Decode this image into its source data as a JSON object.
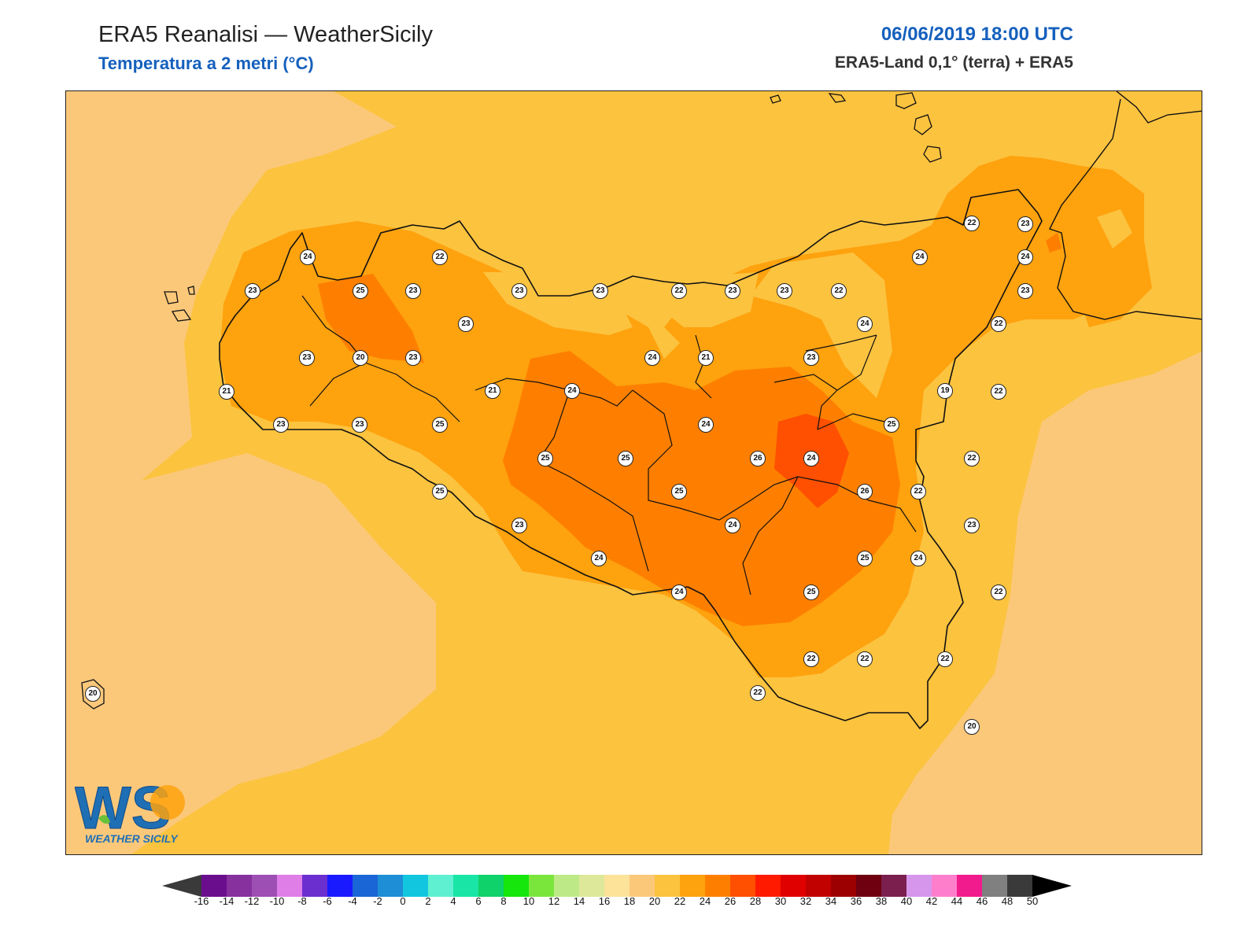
{
  "header": {
    "title": "ERA5 Reanalisi — WeatherSicily",
    "subtitle": "Temperatura a 2 metri (°C)",
    "datetime": "06/06/2019 18:00 UTC",
    "source": "ERA5-Land 0,1° (terra) + ERA5"
  },
  "map": {
    "region": "Sicily",
    "variable": "2m temperature",
    "unit": "°C",
    "station_values": [
      24,
      22,
      23,
      25,
      23,
      23,
      23,
      22,
      23,
      23,
      22,
      22,
      23,
      24,
      24,
      23,
      24,
      22,
      23,
      20,
      23,
      23,
      24,
      21,
      23,
      21,
      19,
      21,
      22,
      23,
      23,
      25,
      25,
      24,
      24,
      25,
      25,
      26,
      24,
      22,
      25,
      26,
      25,
      22,
      23,
      24,
      23,
      24,
      25,
      24,
      22,
      24,
      25,
      22,
      22,
      22,
      22,
      20,
      20
    ]
  },
  "colorbar": {
    "ticks": [
      "-16",
      "-14",
      "-12",
      "-10",
      "-8",
      "-6",
      "-4",
      "-2",
      "0",
      "2",
      "4",
      "6",
      "8",
      "10",
      "12",
      "14",
      "16",
      "18",
      "20",
      "22",
      "24",
      "26",
      "28",
      "30",
      "32",
      "34",
      "36",
      "38",
      "40",
      "42",
      "44",
      "46",
      "48",
      "50"
    ],
    "colors": [
      "#4a0050",
      "#6a0e8e",
      "#86319e",
      "#9e4fb4",
      "#e07ee8",
      "#6b2fd0",
      "#1a1aff",
      "#1a66d6",
      "#1e8ed6",
      "#12c6e0",
      "#5ef0d0",
      "#19e6a6",
      "#10d26a",
      "#16e60c",
      "#7ae63c",
      "#bdea86",
      "#dee89a",
      "#fde29a",
      "#fbc87a",
      "#fcc33f",
      "#fea20e",
      "#fe7f00",
      "#ff4f00",
      "#ff1a00",
      "#e00000",
      "#c10000",
      "#9c0000",
      "#6f0010",
      "#7b1f4e",
      "#d696ec",
      "#ff7ecc",
      "#f21b8e",
      "#808080",
      "#3a3a3a"
    ],
    "under_color": "#3a3a3a",
    "over_color": "#000000"
  },
  "logo": {
    "text": "WEATHER SICILY",
    "monogram": "WS"
  }
}
